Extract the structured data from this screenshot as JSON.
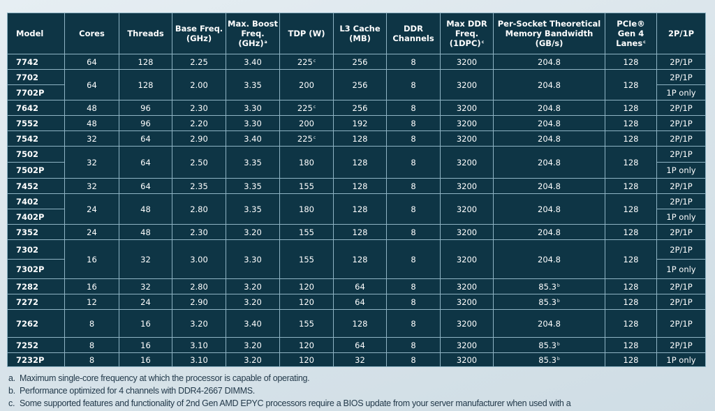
{
  "headers": [
    {
      "text": "Model"
    },
    {
      "text": "Cores"
    },
    {
      "text": "Threads"
    },
    {
      "text": "Base Freq. (GHz)"
    },
    {
      "text": "Max. Boost Freq. (GHz)",
      "sup": "a"
    },
    {
      "text": "TDP (W)"
    },
    {
      "text": "L3 Cache (MB)"
    },
    {
      "text": "DDR Channels"
    },
    {
      "text": "Max DDR Freq. (1DPC)",
      "sup": "c"
    },
    {
      "text": "Per-Socket Theoretical Memory Bandwidth (GB/s)"
    },
    {
      "text": "PCIe® Gen 4 Lanes",
      "sup": "c"
    },
    {
      "text": "2P/1P"
    }
  ],
  "rows": [
    {
      "models": [
        "7742"
      ],
      "values": [
        "64",
        "128",
        "2.25",
        "3.40",
        [
          "225",
          "c"
        ],
        "256",
        "8",
        "3200",
        "204.8",
        "128"
      ],
      "socket": [
        "2P/1P"
      ]
    },
    {
      "models": [
        "7702",
        "7702P"
      ],
      "values": [
        "64",
        "128",
        "2.00",
        "3.35",
        "200",
        "256",
        "8",
        "3200",
        "204.8",
        "128"
      ],
      "socket": [
        "2P/1P",
        "1P only"
      ]
    },
    {
      "models": [
        "7642"
      ],
      "values": [
        "48",
        "96",
        "2.30",
        "3.30",
        [
          "225",
          "c"
        ],
        "256",
        "8",
        "3200",
        "204.8",
        "128"
      ],
      "socket": [
        "2P/1P"
      ]
    },
    {
      "models": [
        "7552"
      ],
      "values": [
        "48",
        "96",
        "2.20",
        "3.30",
        "200",
        "192",
        "8",
        "3200",
        "204.8",
        "128"
      ],
      "socket": [
        "2P/1P"
      ]
    },
    {
      "models": [
        "7542"
      ],
      "values": [
        "32",
        "64",
        "2.90",
        "3.40",
        [
          "225",
          "c"
        ],
        "128",
        "8",
        "3200",
        "204.8",
        "128"
      ],
      "socket": [
        "2P/1P"
      ]
    },
    {
      "models": [
        "7502",
        "7502P"
      ],
      "values": [
        "32",
        "64",
        "2.50",
        "3.35",
        "180",
        "128",
        "8",
        "3200",
        "204.8",
        "128"
      ],
      "socket": [
        "2P/1P",
        "1P only"
      ]
    },
    {
      "models": [
        "7452"
      ],
      "values": [
        "32",
        "64",
        "2.35",
        "3.35",
        "155",
        "128",
        "8",
        "3200",
        "204.8",
        "128"
      ],
      "socket": [
        "2P/1P"
      ]
    },
    {
      "models": [
        "7402",
        "7402P"
      ],
      "values": [
        "24",
        "48",
        "2.80",
        "3.35",
        "180",
        "128",
        "8",
        "3200",
        "204.8",
        "128"
      ],
      "socket": [
        "2P/1P",
        "1P only"
      ]
    },
    {
      "models": [
        "7352"
      ],
      "values": [
        "24",
        "48",
        "2.30",
        "3.20",
        "155",
        "128",
        "8",
        "3200",
        "204.8",
        "128"
      ],
      "socket": [
        "2P/1P"
      ]
    },
    {
      "models": [
        "7302",
        "7302P"
      ],
      "values": [
        "16",
        "32",
        "3.00",
        "3.30",
        "155",
        "128",
        "8",
        "3200",
        "204.8",
        "128"
      ],
      "socket": [
        "2P/1P",
        "1P only"
      ]
    },
    {
      "models": [
        "7282"
      ],
      "values": [
        "16",
        "32",
        "2.80",
        "3.20",
        "120",
        "64",
        "8",
        "3200",
        [
          "85.3",
          "b"
        ],
        "128"
      ],
      "socket": [
        "2P/1P"
      ]
    },
    {
      "models": [
        "7272"
      ],
      "values": [
        "12",
        "24",
        "2.90",
        "3.20",
        "120",
        "64",
        "8",
        "3200",
        [
          "85.3",
          "b"
        ],
        "128"
      ],
      "socket": [
        "2P/1P"
      ]
    },
    {
      "models": [
        "7262"
      ],
      "values": [
        "8",
        "16",
        "3.20",
        "3.40",
        "155",
        "128",
        "8",
        "3200",
        "204.8",
        "128"
      ],
      "socket": [
        "2P/1P"
      ]
    },
    {
      "models": [
        "7252"
      ],
      "values": [
        "8",
        "16",
        "3.10",
        "3.20",
        "120",
        "64",
        "8",
        "3200",
        [
          "85.3",
          "b"
        ],
        "128"
      ],
      "socket": [
        "2P/1P"
      ]
    },
    {
      "models": [
        "7232P"
      ],
      "values": [
        "8",
        "16",
        "3.10",
        "3.20",
        "120",
        "32",
        "8",
        "3200",
        [
          "85.3",
          "b"
        ],
        "128"
      ],
      "socket": [
        "1P only"
      ]
    }
  ],
  "footnotes": [
    {
      "label": "a.",
      "text": "Maximum single-core frequency at which the processor is capable of operating."
    },
    {
      "label": "b.",
      "text": "Performance optimized for 4 channels with DDR4-2667 DIMMS."
    },
    {
      "label": "c.",
      "text": "Some supported features and functionality of 2nd Gen AMD EPYC processors require a BIOS update from your server manufacturer when used with a"
    }
  ],
  "colors": {
    "table_bg": "#0e3545",
    "border": "#8fb4c4",
    "text": "#ffffff"
  }
}
